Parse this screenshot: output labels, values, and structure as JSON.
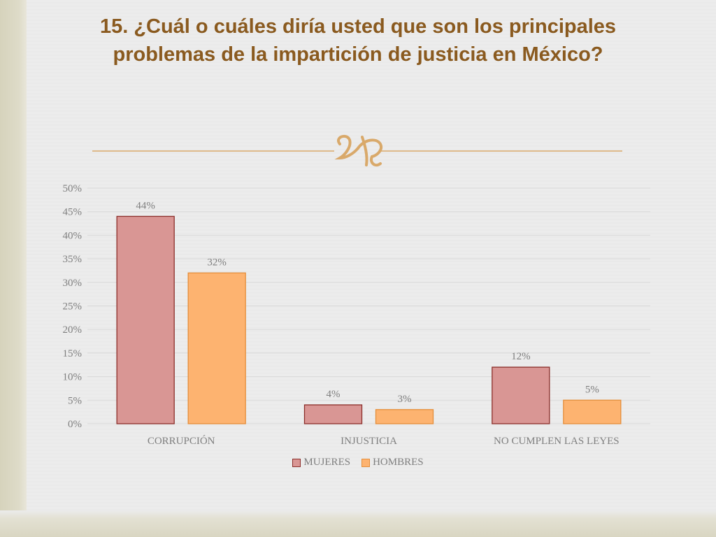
{
  "slide": {
    "title": "15. ¿Cuál o cuáles diría usted que son los principales problemas de la impartición de justicia en México?"
  },
  "colors": {
    "title": "#8a5a1f",
    "ornament_line": "#d9a96a",
    "mujeres_fill": "#d99694",
    "mujeres_border": "#8b2e2a",
    "hombres_fill": "#fdb370",
    "hombres_border": "#e58e3a",
    "gridline": "#d9d9d9",
    "axis_text": "#7f7f7f"
  },
  "chart_data": {
    "type": "bar",
    "categories": [
      "CORRUPCIÓN",
      "INJUSTICIA",
      "NO CUMPLEN LAS LEYES"
    ],
    "series": [
      {
        "name": "MUJERES",
        "values": [
          44,
          4,
          12
        ],
        "labels": [
          "44%",
          "4%",
          "12%"
        ]
      },
      {
        "name": "HOMBRES",
        "values": [
          32,
          3,
          5
        ],
        "labels": [
          "32%",
          "3%",
          "5%"
        ]
      }
    ],
    "ylim": [
      0,
      50
    ],
    "yticks": [
      0,
      5,
      10,
      15,
      20,
      25,
      30,
      35,
      40,
      45,
      50
    ],
    "ytick_labels": [
      "0%",
      "5%",
      "10%",
      "15%",
      "20%",
      "25%",
      "30%",
      "35%",
      "40%",
      "45%",
      "50%"
    ],
    "grid": true,
    "legend_position": "bottom"
  }
}
